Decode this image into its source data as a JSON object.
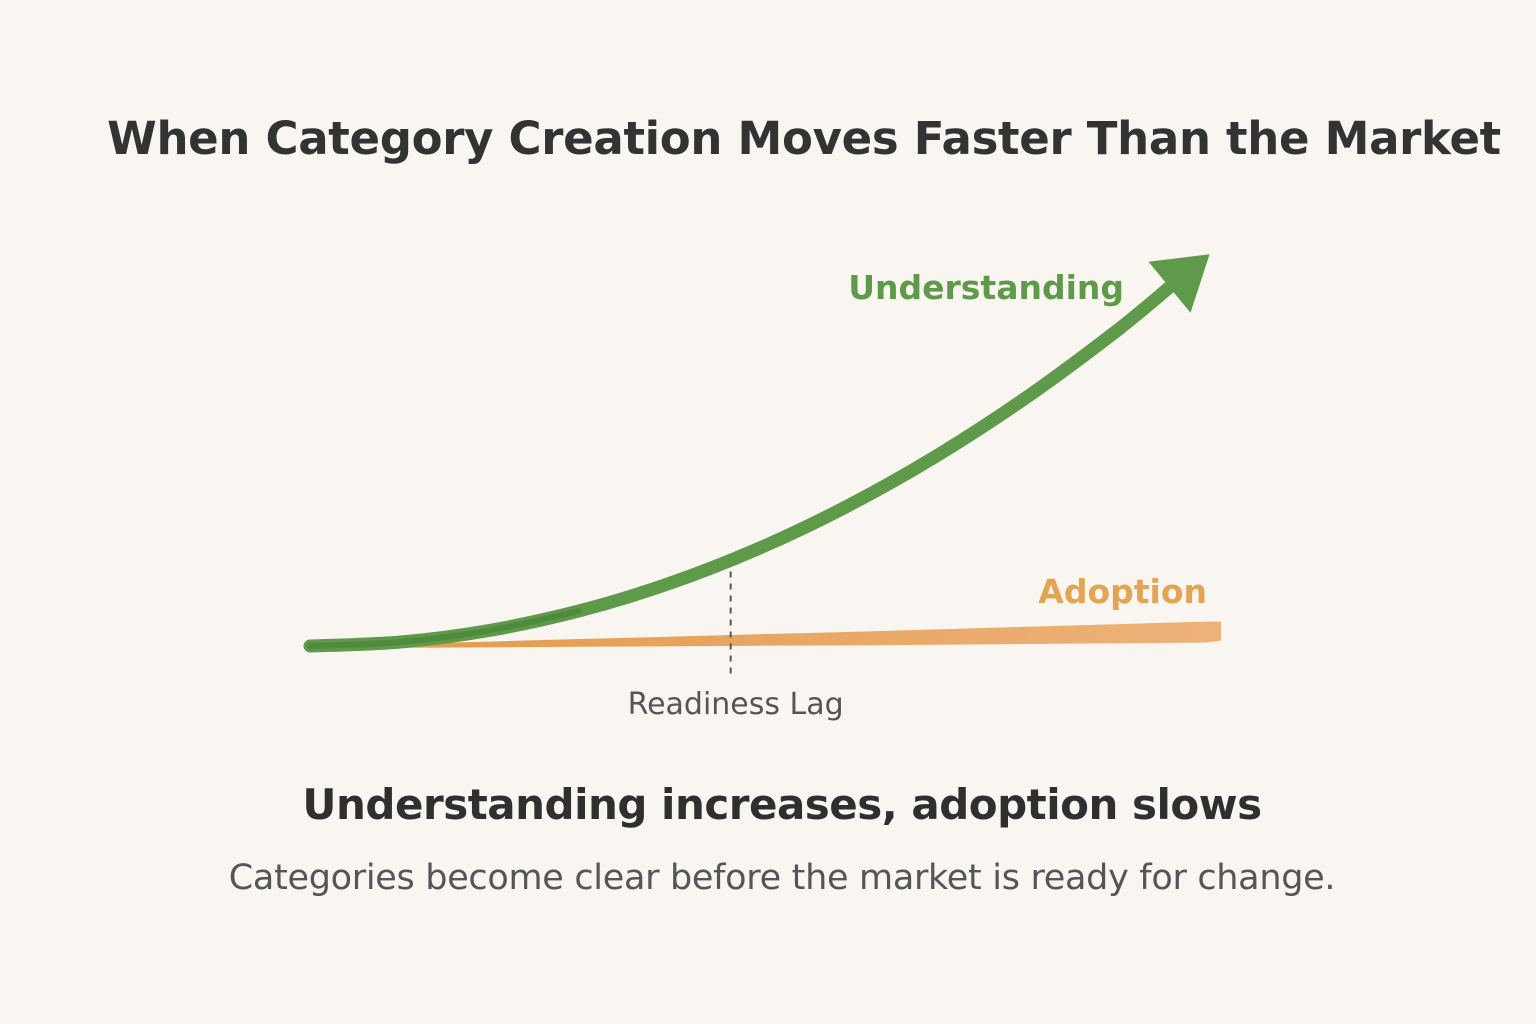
{
  "chart_data": {
    "type": "line",
    "title": "When Category Creation Moves Faster Than the Market",
    "xlabel": "",
    "ylabel": "",
    "x": [
      0,
      1,
      2,
      3,
      4,
      5,
      6,
      7,
      8,
      9,
      10
    ],
    "xlim": [
      0,
      10
    ],
    "ylim": [
      0,
      100
    ],
    "grid": false,
    "legend": "inline labels at line ends",
    "series": [
      {
        "name": "Understanding",
        "color": "#5f9a4b",
        "values": [
          0,
          1,
          4,
          9,
          16,
          25,
          36,
          49,
          64,
          81,
          100
        ],
        "marker": "arrow"
      },
      {
        "name": "Adoption",
        "color": "#e8a55c",
        "values": [
          0,
          0.3,
          0.6,
          1,
          1.3,
          1.7,
          2,
          2.4,
          2.8,
          3.2,
          3.6
        ]
      }
    ],
    "annotations": [
      {
        "text": "Readiness Lag",
        "x": 4.7,
        "style": "dashed-vertical"
      }
    ]
  },
  "headline": "Understanding increases, adoption slows",
  "subhead": "Categories become clear before the market is ready for change.",
  "colors": {
    "background": "#f9f6f1",
    "understanding": "#5f9a4b",
    "adoption": "#e8a55c",
    "text": "#333333",
    "muted": "#555555"
  }
}
